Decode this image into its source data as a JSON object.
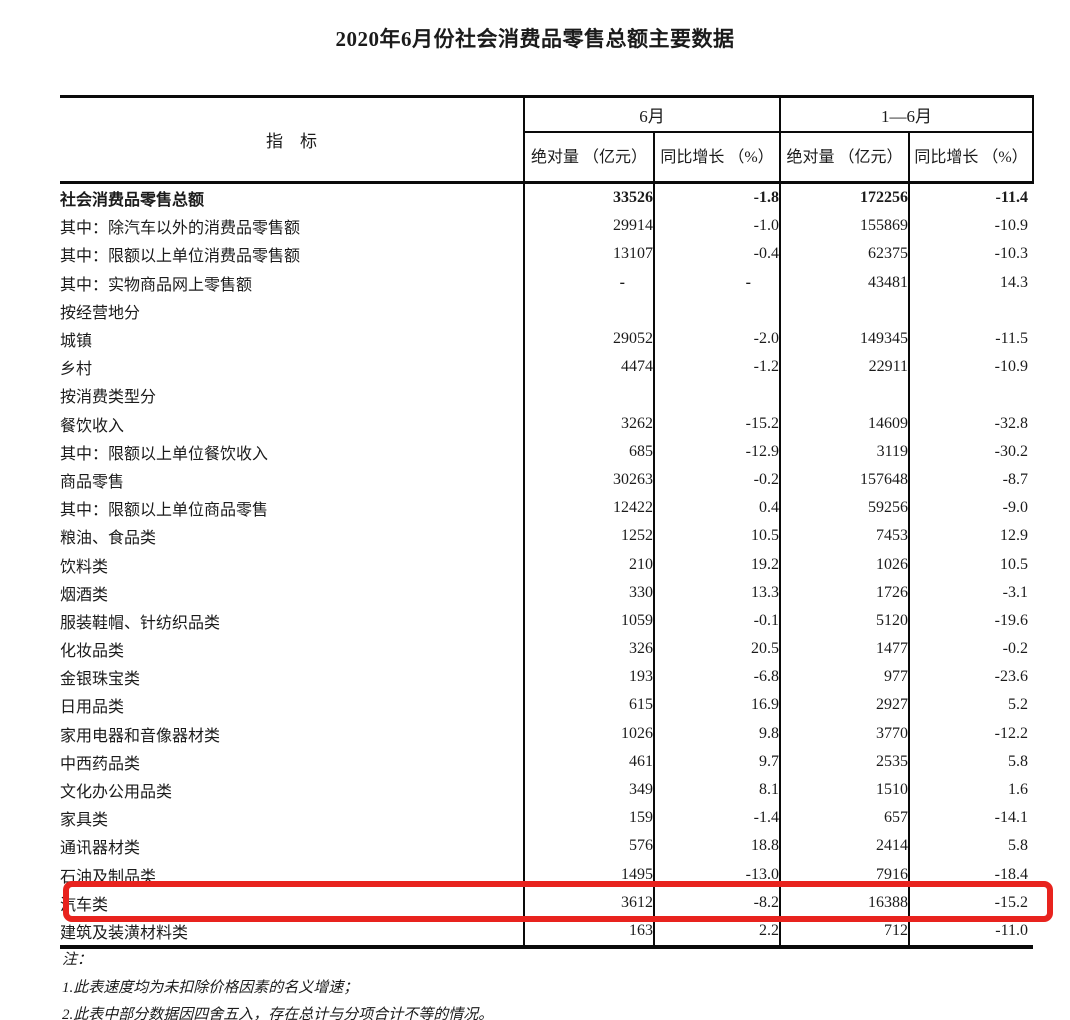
{
  "title": "2020年6月份社会消费品零售总额主要数据",
  "table": {
    "header": {
      "indicator": "指　标",
      "june": "6月",
      "jan_jun": "1—6月",
      "absolute": "绝对量\n（亿元）",
      "growth": "同比增长\n（%）"
    },
    "rows": [
      {
        "label": "社会消费品零售总额",
        "indent": 0,
        "bold": true,
        "highlight": false,
        "values": [
          "33526",
          "-1.8",
          "172256",
          "-11.4"
        ]
      },
      {
        "label": "其中：除汽车以外的消费品零售额",
        "indent": 1,
        "bold": false,
        "highlight": false,
        "values": [
          "29914",
          "-1.0",
          "155869",
          "-10.9"
        ]
      },
      {
        "label": "其中：限额以上单位消费品零售额",
        "indent": 1,
        "bold": false,
        "highlight": false,
        "values": [
          "13107",
          "-0.4",
          "62375",
          "-10.3"
        ]
      },
      {
        "label": "其中：实物商品网上零售额",
        "indent": 1,
        "bold": false,
        "highlight": false,
        "values": [
          "-",
          "-",
          "43481",
          "14.3"
        ]
      },
      {
        "label": "按经营地分",
        "indent": 0,
        "bold": false,
        "highlight": false,
        "values": [
          "",
          "",
          "",
          ""
        ]
      },
      {
        "label": "城镇",
        "indent": 1,
        "bold": false,
        "highlight": false,
        "values": [
          "29052",
          "-2.0",
          "149345",
          "-11.5"
        ]
      },
      {
        "label": "乡村",
        "indent": 1,
        "bold": false,
        "highlight": false,
        "values": [
          "4474",
          "-1.2",
          "22911",
          "-10.9"
        ]
      },
      {
        "label": "按消费类型分",
        "indent": 0,
        "bold": false,
        "highlight": false,
        "values": [
          "",
          "",
          "",
          ""
        ]
      },
      {
        "label": "餐饮收入",
        "indent": 1,
        "bold": false,
        "highlight": false,
        "values": [
          "3262",
          "-15.2",
          "14609",
          "-32.8"
        ]
      },
      {
        "label": "其中：限额以上单位餐饮收入",
        "indent": 2,
        "bold": false,
        "highlight": false,
        "values": [
          "685",
          "-12.9",
          "3119",
          "-30.2"
        ]
      },
      {
        "label": "商品零售",
        "indent": 1,
        "bold": false,
        "highlight": false,
        "values": [
          "30263",
          "-0.2",
          "157648",
          "-8.7"
        ]
      },
      {
        "label": "其中：限额以上单位商品零售",
        "indent": 2,
        "bold": false,
        "highlight": false,
        "values": [
          "12422",
          "0.4",
          "59256",
          "-9.0"
        ]
      },
      {
        "label": "粮油、食品类",
        "indent": 3,
        "bold": false,
        "highlight": false,
        "values": [
          "1252",
          "10.5",
          "7453",
          "12.9"
        ]
      },
      {
        "label": "饮料类",
        "indent": 3,
        "bold": false,
        "highlight": false,
        "values": [
          "210",
          "19.2",
          "1026",
          "10.5"
        ]
      },
      {
        "label": "烟酒类",
        "indent": 3,
        "bold": false,
        "highlight": false,
        "values": [
          "330",
          "13.3",
          "1726",
          "-3.1"
        ]
      },
      {
        "label": "服装鞋帽、针纺织品类",
        "indent": 3,
        "bold": false,
        "highlight": false,
        "values": [
          "1059",
          "-0.1",
          "5120",
          "-19.6"
        ]
      },
      {
        "label": "化妆品类",
        "indent": 3,
        "bold": false,
        "highlight": false,
        "values": [
          "326",
          "20.5",
          "1477",
          "-0.2"
        ]
      },
      {
        "label": "金银珠宝类",
        "indent": 3,
        "bold": false,
        "highlight": false,
        "values": [
          "193",
          "-6.8",
          "977",
          "-23.6"
        ]
      },
      {
        "label": "日用品类",
        "indent": 3,
        "bold": false,
        "highlight": false,
        "values": [
          "615",
          "16.9",
          "2927",
          "5.2"
        ]
      },
      {
        "label": "家用电器和音像器材类",
        "indent": 3,
        "bold": false,
        "highlight": false,
        "values": [
          "1026",
          "9.8",
          "3770",
          "-12.2"
        ]
      },
      {
        "label": "中西药品类",
        "indent": 3,
        "bold": false,
        "highlight": false,
        "values": [
          "461",
          "9.7",
          "2535",
          "5.8"
        ]
      },
      {
        "label": "文化办公用品类",
        "indent": 3,
        "bold": false,
        "highlight": false,
        "values": [
          "349",
          "8.1",
          "1510",
          "1.6"
        ]
      },
      {
        "label": "家具类",
        "indent": 3,
        "bold": false,
        "highlight": false,
        "values": [
          "159",
          "-1.4",
          "657",
          "-14.1"
        ]
      },
      {
        "label": "通讯器材类",
        "indent": 3,
        "bold": false,
        "highlight": false,
        "values": [
          "576",
          "18.8",
          "2414",
          "5.8"
        ]
      },
      {
        "label": "石油及制品类",
        "indent": 3,
        "bold": false,
        "highlight": false,
        "values": [
          "1495",
          "-13.0",
          "7916",
          "-18.4"
        ]
      },
      {
        "label": "汽车类",
        "indent": 3,
        "bold": false,
        "highlight": true,
        "values": [
          "3612",
          "-8.2",
          "16388",
          "-15.2"
        ]
      },
      {
        "label": "建筑及装潢材料类",
        "indent": 3,
        "bold": false,
        "highlight": false,
        "values": [
          "163",
          "2.2",
          "712",
          "-11.0"
        ]
      }
    ]
  },
  "highlight": {
    "color": "#e8231e",
    "row_label": "汽车类"
  },
  "notes": {
    "label": "注：",
    "items": [
      "1.此表速度均为未扣除价格因素的名义增速；",
      "2.此表中部分数据因四舍五入，存在总计与分项合计不等的情况。"
    ]
  }
}
